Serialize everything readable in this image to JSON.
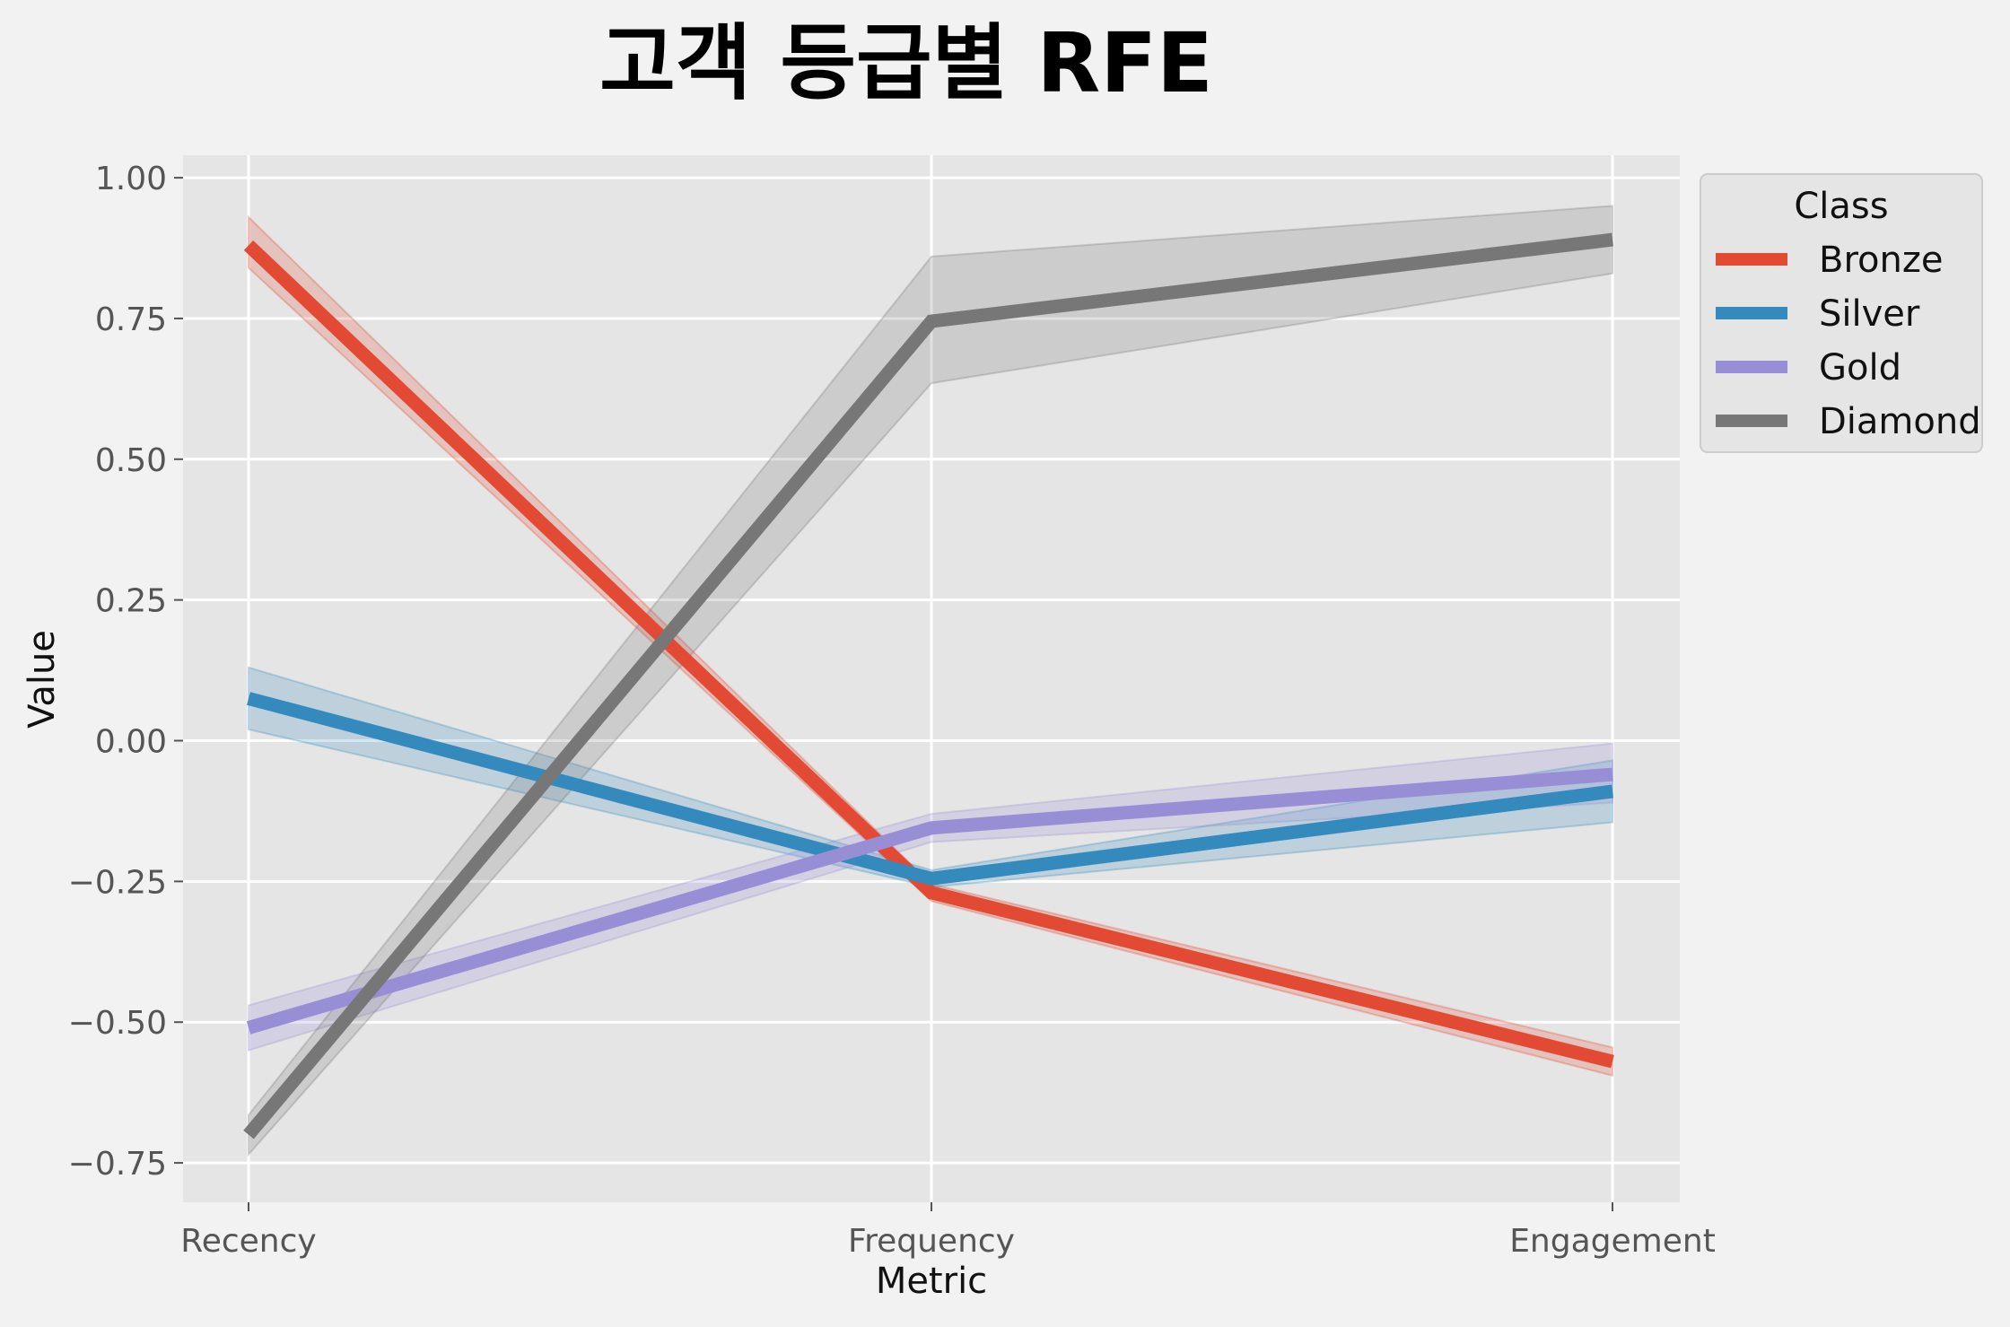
{
  "chart_data": {
    "type": "line",
    "title": "고객 등급별 RFE",
    "xlabel": "Metric",
    "ylabel": "Value",
    "categories": [
      "Recency",
      "Frequency",
      "Engagement"
    ],
    "ylim": [
      -0.82,
      1.04
    ],
    "yticks": [
      "1.00",
      "0.75",
      "0.50",
      "0.25",
      "0.00",
      "-0.25",
      "-0.50",
      "-0.75"
    ],
    "grid": true,
    "legend": {
      "title": "Class",
      "placement": "outside-top-right"
    },
    "series": [
      {
        "name": "Bronze",
        "color": "#e24a33",
        "values": [
          0.88,
          -0.27,
          -0.57
        ],
        "ci_lower": [
          0.84,
          -0.285,
          -0.595
        ],
        "ci_upper": [
          0.93,
          -0.255,
          -0.545
        ]
      },
      {
        "name": "Silver",
        "color": "#348abd",
        "values": [
          0.075,
          -0.245,
          -0.09
        ],
        "ci_lower": [
          0.02,
          -0.26,
          -0.145
        ],
        "ci_upper": [
          0.13,
          -0.23,
          -0.035
        ]
      },
      {
        "name": "Gold",
        "color": "#988ed5",
        "values": [
          -0.51,
          -0.155,
          -0.06
        ],
        "ci_lower": [
          -0.55,
          -0.18,
          -0.11
        ],
        "ci_upper": [
          -0.47,
          -0.13,
          -0.005
        ]
      },
      {
        "name": "Diamond",
        "color": "#777777",
        "values": [
          -0.7,
          0.745,
          0.89
        ],
        "ci_lower": [
          -0.735,
          0.635,
          0.83
        ],
        "ci_upper": [
          -0.665,
          0.86,
          0.95
        ]
      }
    ]
  }
}
